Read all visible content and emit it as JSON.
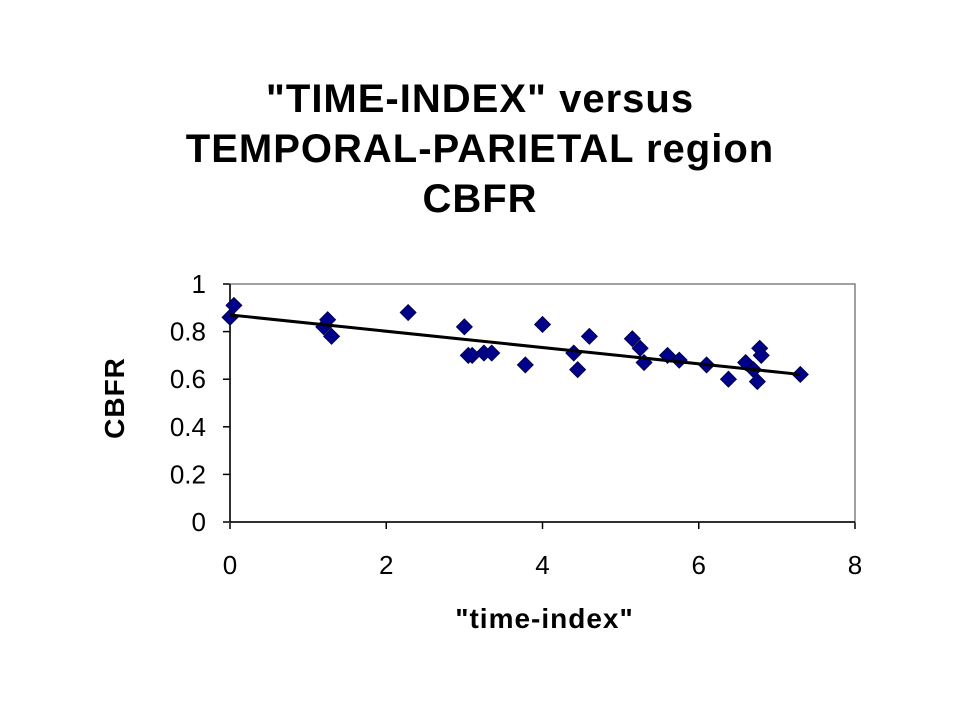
{
  "title_lines": [
    "\"TIME-INDEX\" versus",
    "TEMPORAL-PARIETAL region",
    "CBFR"
  ],
  "chart_data": {
    "type": "scatter",
    "title": "\"TIME-INDEX\" versus TEMPORAL-PARIETAL region CBFR",
    "xlabel": "\"time-index\"",
    "ylabel": "CBFR",
    "xlim": [
      0,
      8
    ],
    "ylim": [
      0,
      1
    ],
    "x_ticks": [
      0,
      2,
      4,
      6,
      8
    ],
    "y_ticks": [
      0,
      0.2,
      0.4,
      0.6,
      0.8,
      1
    ],
    "x_tick_labels": [
      "0",
      "2",
      "4",
      "6",
      "8"
    ],
    "y_tick_labels": [
      "0",
      "0.2",
      "0.4",
      "0.6",
      "0.8",
      "1"
    ],
    "grid": false,
    "marker_color": "#00008B",
    "trendline": {
      "x": [
        0,
        7.3
      ],
      "y": [
        0.87,
        0.62
      ],
      "color": "#000000"
    },
    "points": [
      {
        "x": 0.0,
        "y": 0.86
      },
      {
        "x": 0.05,
        "y": 0.91
      },
      {
        "x": 1.2,
        "y": 0.82
      },
      {
        "x": 1.25,
        "y": 0.85
      },
      {
        "x": 1.3,
        "y": 0.78
      },
      {
        "x": 2.28,
        "y": 0.88
      },
      {
        "x": 3.0,
        "y": 0.82
      },
      {
        "x": 3.05,
        "y": 0.7
      },
      {
        "x": 3.1,
        "y": 0.7
      },
      {
        "x": 3.25,
        "y": 0.71
      },
      {
        "x": 3.35,
        "y": 0.71
      },
      {
        "x": 3.78,
        "y": 0.66
      },
      {
        "x": 4.0,
        "y": 0.83
      },
      {
        "x": 4.4,
        "y": 0.71
      },
      {
        "x": 4.45,
        "y": 0.64
      },
      {
        "x": 4.6,
        "y": 0.78
      },
      {
        "x": 5.15,
        "y": 0.77
      },
      {
        "x": 5.25,
        "y": 0.73
      },
      {
        "x": 5.3,
        "y": 0.67
      },
      {
        "x": 5.6,
        "y": 0.7
      },
      {
        "x": 5.75,
        "y": 0.68
      },
      {
        "x": 6.1,
        "y": 0.66
      },
      {
        "x": 6.38,
        "y": 0.6
      },
      {
        "x": 6.6,
        "y": 0.67
      },
      {
        "x": 6.7,
        "y": 0.64
      },
      {
        "x": 6.75,
        "y": 0.59
      },
      {
        "x": 6.78,
        "y": 0.73
      },
      {
        "x": 6.8,
        "y": 0.7
      },
      {
        "x": 7.3,
        "y": 0.62
      }
    ]
  }
}
